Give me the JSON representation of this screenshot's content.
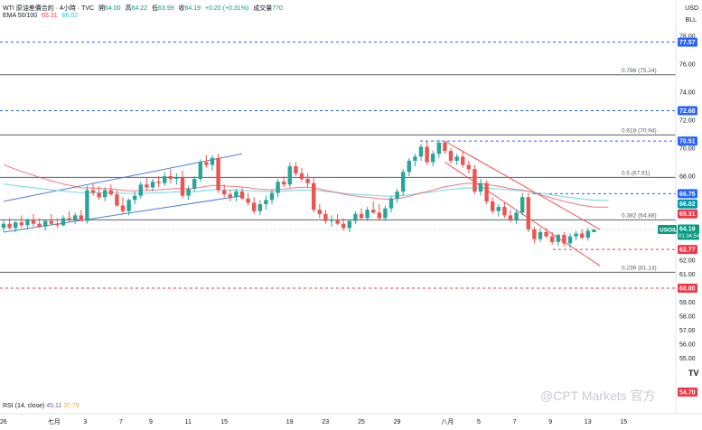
{
  "header": {
    "title": "WTI 原油差價合約 · 4小時 · TVC",
    "open_label": "開",
    "open": "64.00",
    "high_label": "高",
    "high": "64.22",
    "low_label": "低",
    "low": "63.99",
    "close_label": "收",
    "close": "64.19",
    "change": "+0.20 (+0.31%)",
    "volume_label": "成交量",
    "volume": "770",
    "ema_label": "EMA 50/100",
    "ema50": "65.31",
    "ema100": "66.02"
  },
  "currency": "USD",
  "unit": "BLL",
  "rsi": {
    "label": "RSI (14, close)",
    "value1": "45.11",
    "value2": "37.79"
  },
  "watermark": "@CPT Markets 官方",
  "tv_logo": "TV",
  "colors": {
    "up": "#26a69a",
    "down": "#ef5350",
    "ema50": "#f7525f",
    "ema100": "#80deea",
    "channel": "#4a7fe0",
    "dashed_blue": "#2962ff",
    "dashed_red": "#f23645",
    "fib": "#5d606b"
  },
  "chart_data": {
    "type": "candlestick",
    "symbol": "USOIL",
    "timeframe": "4H",
    "x_tick_labels": [
      {
        "label": "26",
        "i": 0
      },
      {
        "label": "七月",
        "i": 8
      },
      {
        "label": "3",
        "i": 14
      },
      {
        "label": "7",
        "i": 20
      },
      {
        "label": "9",
        "i": 25
      },
      {
        "label": "11",
        "i": 31
      },
      {
        "label": "15",
        "i": 37
      },
      {
        "label": "19",
        "i": 48
      },
      {
        "label": "23",
        "i": 54
      },
      {
        "label": "25",
        "i": 60
      },
      {
        "label": "29",
        "i": 66
      },
      {
        "label": "八月",
        "i": 74
      },
      {
        "label": "5",
        "i": 80
      },
      {
        "label": "7",
        "i": 86
      },
      {
        "label": "9",
        "i": 92
      },
      {
        "label": "13",
        "i": 98
      },
      {
        "label": "15",
        "i": 104
      }
    ],
    "y_tick_labels": [
      "78.00",
      "76.00",
      "74.00",
      "72.00",
      "70.00",
      "68.00",
      "66.00",
      "64.00",
      "62.00",
      "61.00",
      "60.00",
      "59.00",
      "58.00",
      "57.00",
      "56.00",
      "55.00"
    ],
    "ylim": [
      54.4,
      79.4
    ],
    "ohlc": [
      [
        64.3,
        64.9,
        64.0,
        64.6
      ],
      [
        64.6,
        65.0,
        64.2,
        64.3
      ],
      [
        64.3,
        64.8,
        64.0,
        64.7
      ],
      [
        64.7,
        65.2,
        64.3,
        64.5
      ],
      [
        64.5,
        65.0,
        64.2,
        64.9
      ],
      [
        64.9,
        65.3,
        64.4,
        64.6
      ],
      [
        64.6,
        65.0,
        64.3,
        64.4
      ],
      [
        64.4,
        64.9,
        64.1,
        64.8
      ],
      [
        64.8,
        65.3,
        64.5,
        64.6
      ],
      [
        64.6,
        65.0,
        64.3,
        64.5
      ],
      [
        64.5,
        65.2,
        64.4,
        65.0
      ],
      [
        65.0,
        65.5,
        64.7,
        64.9
      ],
      [
        64.9,
        65.4,
        64.6,
        65.2
      ],
      [
        65.2,
        65.6,
        64.8,
        64.8
      ],
      [
        64.8,
        67.3,
        64.6,
        67.0
      ],
      [
        67.0,
        67.5,
        66.6,
        66.8
      ],
      [
        66.8,
        67.3,
        66.3,
        66.5
      ],
      [
        66.5,
        67.2,
        66.2,
        67.0
      ],
      [
        67.0,
        67.4,
        66.6,
        66.7
      ],
      [
        66.7,
        67.0,
        65.8,
        65.9
      ],
      [
        65.9,
        66.5,
        65.3,
        65.5
      ],
      [
        65.5,
        66.4,
        65.2,
        66.3
      ],
      [
        66.3,
        66.9,
        66.0,
        66.6
      ],
      [
        66.6,
        67.6,
        66.4,
        67.4
      ],
      [
        67.4,
        67.9,
        67.0,
        67.2
      ],
      [
        67.2,
        67.8,
        66.9,
        67.6
      ],
      [
        67.6,
        68.0,
        67.2,
        67.5
      ],
      [
        67.5,
        68.3,
        67.3,
        68.0
      ],
      [
        68.0,
        68.5,
        67.5,
        67.8
      ],
      [
        67.8,
        68.2,
        67.4,
        67.9
      ],
      [
        67.9,
        68.4,
        66.4,
        66.6
      ],
      [
        66.6,
        67.3,
        66.3,
        67.1
      ],
      [
        67.1,
        68.0,
        66.9,
        67.8
      ],
      [
        67.8,
        69.2,
        67.6,
        69.0
      ],
      [
        69.0,
        69.5,
        68.6,
        68.8
      ],
      [
        68.8,
        69.5,
        68.4,
        69.3
      ],
      [
        69.3,
        69.6,
        66.8,
        67.0
      ],
      [
        67.0,
        67.4,
        66.5,
        66.7
      ],
      [
        66.7,
        67.0,
        66.2,
        66.5
      ],
      [
        66.5,
        67.1,
        66.2,
        66.9
      ],
      [
        66.9,
        67.2,
        66.3,
        66.4
      ],
      [
        66.4,
        66.8,
        65.9,
        66.1
      ],
      [
        66.1,
        66.5,
        65.3,
        65.5
      ],
      [
        65.5,
        66.3,
        65.2,
        66.0
      ],
      [
        66.0,
        66.6,
        65.6,
        66.3
      ],
      [
        66.3,
        67.0,
        66.0,
        66.8
      ],
      [
        66.8,
        67.8,
        66.5,
        67.6
      ],
      [
        67.6,
        68.0,
        67.2,
        67.4
      ],
      [
        67.4,
        69.0,
        67.2,
        68.7
      ],
      [
        68.7,
        69.0,
        68.0,
        68.2
      ],
      [
        68.2,
        68.6,
        67.6,
        67.8
      ],
      [
        67.8,
        68.2,
        67.2,
        67.5
      ],
      [
        67.5,
        67.9,
        65.4,
        65.6
      ],
      [
        65.6,
        66.0,
        65.0,
        65.3
      ],
      [
        65.3,
        65.6,
        64.6,
        64.8
      ],
      [
        64.8,
        65.2,
        64.4,
        64.9
      ],
      [
        64.9,
        65.3,
        64.5,
        64.6
      ],
      [
        64.6,
        65.0,
        64.1,
        64.3
      ],
      [
        64.3,
        64.9,
        64.0,
        64.8
      ],
      [
        64.8,
        65.5,
        64.6,
        65.3
      ],
      [
        65.3,
        65.7,
        64.9,
        65.0
      ],
      [
        65.0,
        65.8,
        64.8,
        65.6
      ],
      [
        65.6,
        66.2,
        65.3,
        65.4
      ],
      [
        65.4,
        66.0,
        64.8,
        65.0
      ],
      [
        65.0,
        65.9,
        64.8,
        65.7
      ],
      [
        65.7,
        66.6,
        65.4,
        66.4
      ],
      [
        66.4,
        67.1,
        66.1,
        66.9
      ],
      [
        66.9,
        68.5,
        66.6,
        68.3
      ],
      [
        68.3,
        69.3,
        68.0,
        69.1
      ],
      [
        69.1,
        69.6,
        68.7,
        69.4
      ],
      [
        69.4,
        70.3,
        69.1,
        70.1
      ],
      [
        70.1,
        70.5,
        68.8,
        69.0
      ],
      [
        69.0,
        69.8,
        68.7,
        69.6
      ],
      [
        69.6,
        70.6,
        69.3,
        70.4
      ],
      [
        70.4,
        70.5,
        69.6,
        69.8
      ],
      [
        69.8,
        70.0,
        68.9,
        69.1
      ],
      [
        69.1,
        69.6,
        68.8,
        69.4
      ],
      [
        69.4,
        69.8,
        68.6,
        68.8
      ],
      [
        68.8,
        69.1,
        68.2,
        68.5
      ],
      [
        68.5,
        68.8,
        66.7,
        66.9
      ],
      [
        66.9,
        67.8,
        66.6,
        67.5
      ],
      [
        67.5,
        67.7,
        66.0,
        66.2
      ],
      [
        66.2,
        66.5,
        65.3,
        65.5
      ],
      [
        65.5,
        66.0,
        65.1,
        65.8
      ],
      [
        65.8,
        66.1,
        65.0,
        65.2
      ],
      [
        65.2,
        65.6,
        64.7,
        64.9
      ],
      [
        64.9,
        65.6,
        64.6,
        65.4
      ],
      [
        65.4,
        66.8,
        65.2,
        66.5
      ],
      [
        66.5,
        66.8,
        64.0,
        64.2
      ],
      [
        64.2,
        64.4,
        63.2,
        63.5
      ],
      [
        63.5,
        64.3,
        63.3,
        64.0
      ],
      [
        64.0,
        64.3,
        63.6,
        63.7
      ],
      [
        63.7,
        64.0,
        63.1,
        63.3
      ],
      [
        63.3,
        63.9,
        63.0,
        63.8
      ],
      [
        63.8,
        64.0,
        63.0,
        63.2
      ],
      [
        63.2,
        63.9,
        62.9,
        63.7
      ],
      [
        63.7,
        64.1,
        63.4,
        63.9
      ],
      [
        63.9,
        64.2,
        63.5,
        63.6
      ],
      [
        63.6,
        64.3,
        63.4,
        64.1
      ],
      [
        64.0,
        64.2,
        63.99,
        64.19
      ]
    ],
    "horizontal_levels": [
      {
        "price": 77.57,
        "style": "dashed",
        "color": "#2962ff",
        "badge": "77.57"
      },
      {
        "price": 75.24,
        "style": "solid",
        "color": "#5d606b",
        "label": "0.786 (75.24)"
      },
      {
        "price": 72.68,
        "style": "dashed",
        "color": "#2962ff",
        "badge": "72.68"
      },
      {
        "price": 70.94,
        "style": "solid",
        "color": "#5d606b",
        "label": "0.618 (70.94)"
      },
      {
        "price": 70.51,
        "style": "dashed",
        "color": "#2962ff",
        "badge": "70.51"
      },
      {
        "price": 67.91,
        "style": "solid",
        "color": "#5d606b",
        "label": "0.5 (67.91)"
      },
      {
        "price": 66.75,
        "style": "dashed",
        "color": "#2962ff",
        "badge": "66.75"
      },
      {
        "price": 64.88,
        "style": "solid",
        "color": "#5d606b",
        "label": "0.382 (64.88)"
      },
      {
        "price": 62.77,
        "style": "dashed",
        "color": "#f23645",
        "badge": "62.77"
      },
      {
        "price": 61.14,
        "style": "solid",
        "color": "#5d606b",
        "label": "0.236 (61.14)"
      },
      {
        "price": 60.0,
        "style": "dashed",
        "color": "#f23645",
        "badge": "60.00"
      }
    ],
    "badges": [
      {
        "text": "66.02",
        "price": 66.02,
        "color": "#0097a7"
      },
      {
        "text": "65.31",
        "price": 65.31,
        "color": "#f23645"
      },
      {
        "text": "64.19",
        "price": 64.19,
        "color": "#089981",
        "sub": "01:34:54",
        "symbol": "USOIL"
      }
    ],
    "bottom_badge": "54.70",
    "channel_up": {
      "upper": [
        [
          0,
          66.2
        ],
        [
          40,
          69.6
        ]
      ],
      "lower": [
        [
          0,
          64.0
        ],
        [
          40,
          66.6
        ]
      ]
    },
    "channel_down": {
      "upper": [
        [
          74,
          70.5
        ],
        [
          100,
          64.2
        ]
      ],
      "lower": [
        [
          74,
          69.0
        ],
        [
          100,
          61.6
        ]
      ]
    }
  }
}
